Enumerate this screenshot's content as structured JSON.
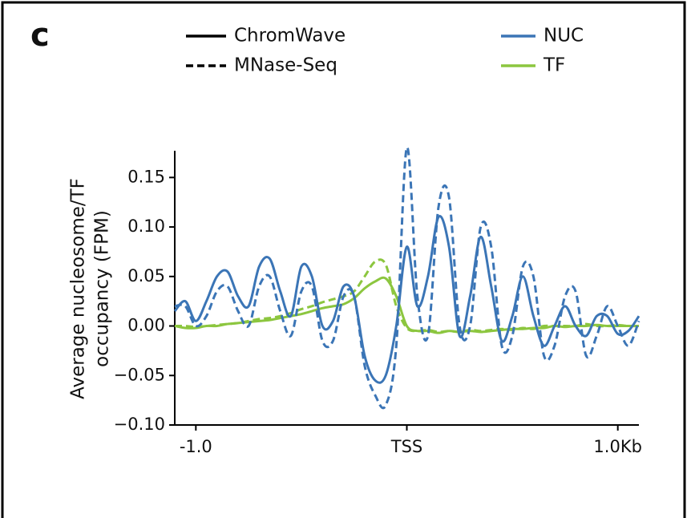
{
  "chart_data": {
    "type": "line",
    "panel_label": "c",
    "ylabel": [
      "Average nucleosome/TF",
      "occupancy (FPM)"
    ],
    "style_legend": [
      {
        "label": "ChromWave",
        "dash": "solid"
      },
      {
        "label": "MNase-Seq",
        "dash": "dashed"
      }
    ],
    "color_legend": [
      {
        "label": "NUC",
        "color": "#3b75b6"
      },
      {
        "label": "TF",
        "color": "#8cc63f"
      }
    ],
    "x": [
      -1.1,
      -1.05,
      -1.0,
      -0.95,
      -0.9,
      -0.85,
      -0.8,
      -0.75,
      -0.7,
      -0.65,
      -0.6,
      -0.55,
      -0.5,
      -0.45,
      -0.4,
      -0.35,
      -0.3,
      -0.25,
      -0.2,
      -0.15,
      -0.1,
      -0.05,
      0,
      0.05,
      0.1,
      0.15,
      0.2,
      0.25,
      0.3,
      0.35,
      0.4,
      0.45,
      0.5,
      0.55,
      0.6,
      0.65,
      0.7,
      0.75,
      0.8,
      0.85,
      0.9,
      0.95,
      1.0,
      1.05,
      1.1
    ],
    "series": [
      {
        "color": "#3b75b6",
        "dash": "solid",
        "values": [
          0.015,
          0.025,
          0.005,
          0.025,
          0.05,
          0.055,
          0.03,
          0.02,
          0.06,
          0.068,
          0.035,
          0.01,
          0.06,
          0.05,
          0.0,
          0.005,
          0.04,
          0.03,
          -0.03,
          -0.055,
          -0.05,
          0.0,
          0.08,
          0.02,
          0.05,
          0.11,
          0.08,
          -0.01,
          0.03,
          0.09,
          0.04,
          -0.015,
          0.01,
          0.05,
          0.01,
          -0.02,
          0.0,
          0.02,
          0.0,
          -0.01,
          0.01,
          0.01,
          -0.008,
          -0.005,
          0.01
        ]
      },
      {
        "color": "#3b75b6",
        "dash": "dashed",
        "values": [
          0.02,
          0.02,
          0.0,
          0.01,
          0.035,
          0.04,
          0.015,
          0.0,
          0.04,
          0.05,
          0.015,
          -0.01,
          0.035,
          0.04,
          -0.015,
          -0.015,
          0.03,
          0.03,
          -0.04,
          -0.07,
          -0.08,
          -0.02,
          0.18,
          0.03,
          -0.01,
          0.12,
          0.13,
          0.0,
          0.0,
          0.1,
          0.08,
          -0.02,
          -0.01,
          0.06,
          0.05,
          -0.03,
          -0.02,
          0.03,
          0.035,
          -0.03,
          -0.01,
          0.02,
          0.0,
          -0.02,
          0.005
        ]
      },
      {
        "color": "#8cc63f",
        "dash": "solid",
        "values": [
          0.0,
          -0.002,
          -0.002,
          0.0,
          0.0,
          0.002,
          0.003,
          0.004,
          0.005,
          0.006,
          0.008,
          0.01,
          0.012,
          0.015,
          0.018,
          0.02,
          0.022,
          0.028,
          0.038,
          0.045,
          0.048,
          0.03,
          0.0,
          -0.005,
          -0.005,
          -0.007,
          -0.005,
          -0.006,
          -0.005,
          -0.006,
          -0.005,
          -0.004,
          -0.003,
          -0.003,
          -0.002,
          -0.002,
          0.0,
          -0.001,
          0.0,
          0.0,
          0.001,
          0.0,
          0.0,
          0.0,
          0.0
        ]
      },
      {
        "color": "#8cc63f",
        "dash": "dashed",
        "values": [
          0.0,
          0.0,
          -0.001,
          0.0,
          0.001,
          0.002,
          0.003,
          0.005,
          0.007,
          0.008,
          0.01,
          0.013,
          0.017,
          0.02,
          0.024,
          0.027,
          0.03,
          0.035,
          0.05,
          0.065,
          0.062,
          0.02,
          -0.002,
          -0.005,
          -0.004,
          -0.006,
          -0.005,
          -0.006,
          -0.004,
          -0.005,
          -0.004,
          -0.003,
          -0.004,
          -0.002,
          -0.003,
          0.0,
          0.0,
          0.0,
          0.0,
          0.002,
          0.0,
          0.0,
          0.001,
          0.0,
          0.0
        ]
      }
    ],
    "xlim": [
      -1.1,
      1.1
    ],
    "xticks": [
      {
        "value": -1.0,
        "label": "-1.0"
      },
      {
        "value": 0,
        "label": "TSS"
      },
      {
        "value": 1.0,
        "label": "1.0Kb"
      }
    ],
    "ylim": [
      -0.1,
      0.177
    ],
    "yticks": [
      {
        "value": -0.1,
        "label": "−0.10"
      },
      {
        "value": -0.05,
        "label": "−0.05"
      },
      {
        "value": 0,
        "label": "0.00"
      },
      {
        "value": 0.05,
        "label": "0.05"
      },
      {
        "value": 0.1,
        "label": "0.10"
      },
      {
        "value": 0.15,
        "label": "0.15"
      }
    ]
  }
}
